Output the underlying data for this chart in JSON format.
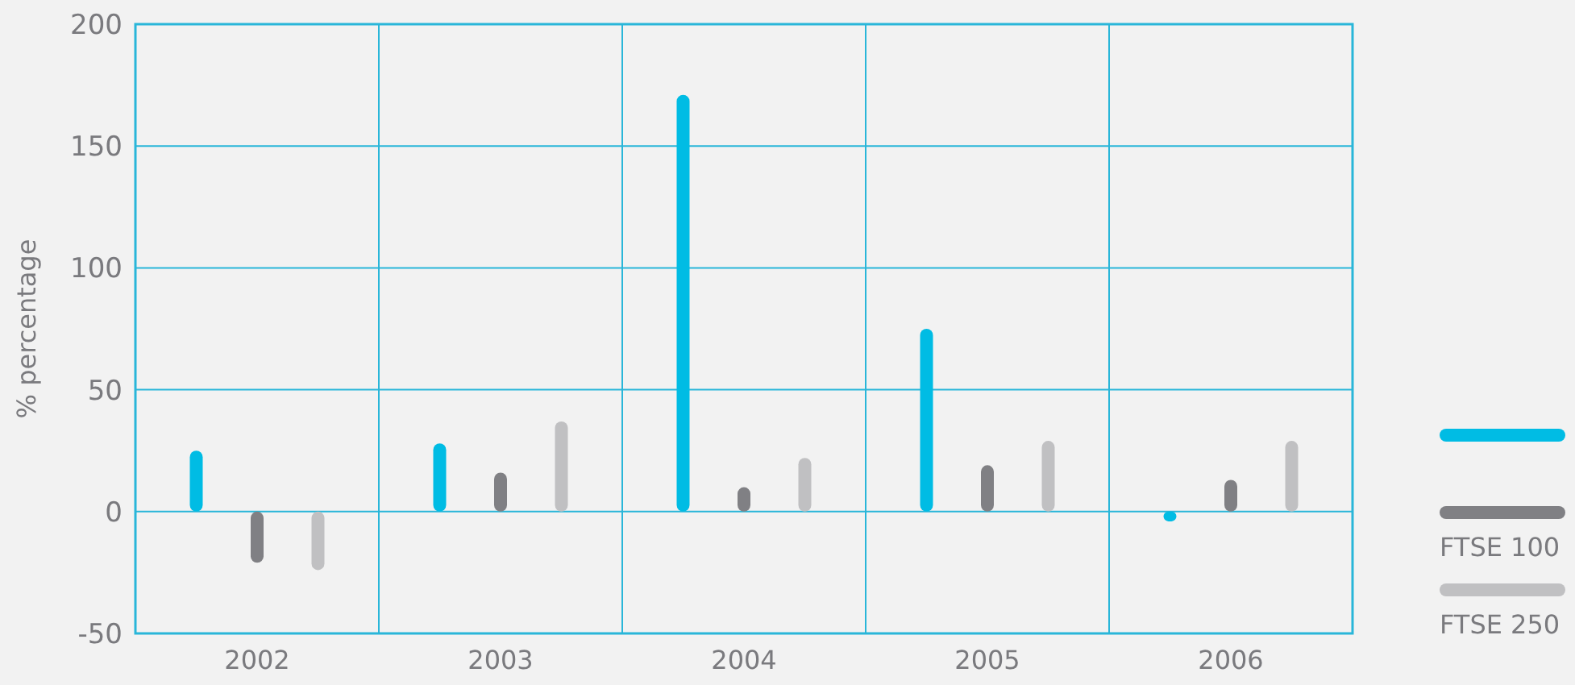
{
  "chart_data": {
    "type": "bar",
    "ylabel": "% percentage",
    "categories": [
      "2002",
      "2003",
      "2004",
      "2005",
      "2006"
    ],
    "series": [
      {
        "color": "#00bce4",
        "values": [
          25,
          28,
          171,
          75,
          -4
        ]
      },
      {
        "name": "FTSE 100",
        "color": "#808084",
        "values": [
          -21,
          16,
          10,
          19,
          13
        ]
      },
      {
        "name": "FTSE 250",
        "color": "#c0c0c2",
        "values": [
          -24,
          37,
          22,
          29,
          29
        ]
      }
    ],
    "ylim": [
      -50,
      200
    ],
    "yticks": [
      -50,
      0,
      50,
      100,
      150,
      200
    ],
    "grid": true,
    "legend": "bottom right"
  }
}
